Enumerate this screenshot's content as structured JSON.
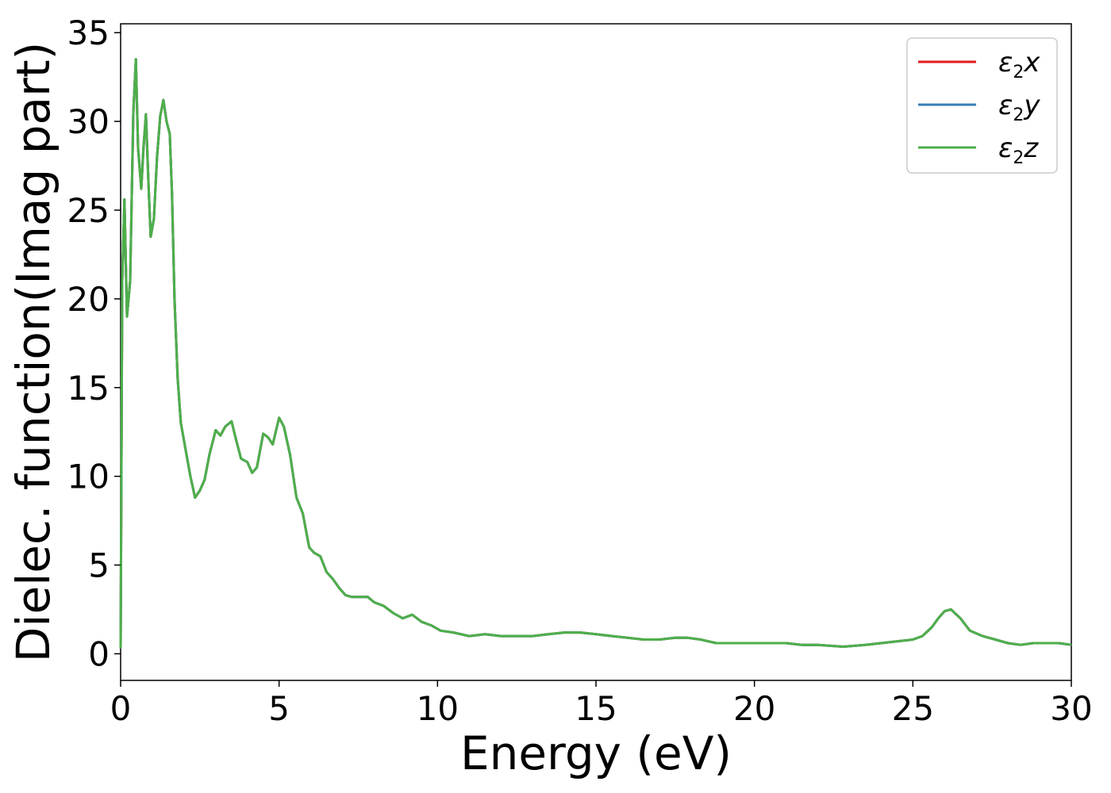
{
  "chart_data": {
    "type": "line",
    "title": "",
    "xlabel": "Energy (eV)",
    "ylabel": "Dielec. function(Imag part)",
    "xlim": [
      0,
      30
    ],
    "ylim": [
      -1.5,
      35.5
    ],
    "xticks": [
      "0",
      "5",
      "10",
      "15",
      "20",
      "25",
      "30"
    ],
    "yticks": [
      "0",
      "5",
      "10",
      "15",
      "20",
      "25",
      "30",
      "35"
    ],
    "grid": false,
    "legend_position": "top-right",
    "x": [
      0,
      0.05,
      0.12,
      0.2,
      0.3,
      0.4,
      0.48,
      0.55,
      0.65,
      0.72,
      0.8,
      0.88,
      0.95,
      1.05,
      1.15,
      1.25,
      1.35,
      1.45,
      1.55,
      1.62,
      1.7,
      1.8,
      1.9,
      2.0,
      2.1,
      2.2,
      2.35,
      2.5,
      2.65,
      2.8,
      3.0,
      3.15,
      3.3,
      3.5,
      3.65,
      3.8,
      4.0,
      4.15,
      4.3,
      4.5,
      4.65,
      4.8,
      5.0,
      5.15,
      5.35,
      5.55,
      5.75,
      5.95,
      6.1,
      6.3,
      6.5,
      6.7,
      6.9,
      7.1,
      7.3,
      7.55,
      7.8,
      8.0,
      8.3,
      8.6,
      8.9,
      9.2,
      9.5,
      9.8,
      10.1,
      10.5,
      11.0,
      11.5,
      12.0,
      12.5,
      13.0,
      13.5,
      14.0,
      14.5,
      15.0,
      15.5,
      16.0,
      16.5,
      17.0,
      17.5,
      17.9,
      18.3,
      18.8,
      19.5,
      20.0,
      20.5,
      21.0,
      21.5,
      22.0,
      22.8,
      23.5,
      24.0,
      24.5,
      25.0,
      25.3,
      25.6,
      25.8,
      26.0,
      26.2,
      26.5,
      26.8,
      27.2,
      27.6,
      28.0,
      28.4,
      28.8,
      29.2,
      29.6,
      30.0
    ],
    "series": [
      {
        "name": "ε2x",
        "color": "#e41a1c",
        "values": [
          0.3,
          21.0,
          25.6,
          19.0,
          21.0,
          30.5,
          33.5,
          28.5,
          26.2,
          28.5,
          30.4,
          26.5,
          23.5,
          24.5,
          28.0,
          30.3,
          31.2,
          30.0,
          29.3,
          26.0,
          20.0,
          15.5,
          13.0,
          12.0,
          11.0,
          10.0,
          8.8,
          9.2,
          9.8,
          11.2,
          12.6,
          12.3,
          12.8,
          13.1,
          12.0,
          11.0,
          10.8,
          10.2,
          10.5,
          12.4,
          12.2,
          11.8,
          13.3,
          12.8,
          11.2,
          8.8,
          7.9,
          6.0,
          5.7,
          5.5,
          4.6,
          4.2,
          3.7,
          3.3,
          3.2,
          3.2,
          3.2,
          2.9,
          2.7,
          2.3,
          2.0,
          2.2,
          1.8,
          1.6,
          1.3,
          1.2,
          1.0,
          1.1,
          1.0,
          1.0,
          1.0,
          1.1,
          1.2,
          1.2,
          1.1,
          1.0,
          0.9,
          0.8,
          0.8,
          0.9,
          0.9,
          0.8,
          0.6,
          0.6,
          0.6,
          0.6,
          0.6,
          0.5,
          0.5,
          0.4,
          0.5,
          0.6,
          0.7,
          0.8,
          1.0,
          1.5,
          2.0,
          2.4,
          2.5,
          2.0,
          1.3,
          1.0,
          0.8,
          0.6,
          0.5,
          0.6,
          0.6,
          0.6,
          0.5
        ]
      },
      {
        "name": "ε2y",
        "color": "#377eb8",
        "values": [
          0.3,
          21.0,
          25.6,
          19.0,
          21.0,
          30.5,
          33.5,
          28.5,
          26.2,
          28.5,
          30.4,
          26.5,
          23.5,
          24.5,
          28.0,
          30.3,
          31.2,
          30.0,
          29.3,
          26.0,
          20.0,
          15.5,
          13.0,
          12.0,
          11.0,
          10.0,
          8.8,
          9.2,
          9.8,
          11.2,
          12.6,
          12.3,
          12.8,
          13.1,
          12.0,
          11.0,
          10.8,
          10.2,
          10.5,
          12.4,
          12.2,
          11.8,
          13.3,
          12.8,
          11.2,
          8.8,
          7.9,
          6.0,
          5.7,
          5.5,
          4.6,
          4.2,
          3.7,
          3.3,
          3.2,
          3.2,
          3.2,
          2.9,
          2.7,
          2.3,
          2.0,
          2.2,
          1.8,
          1.6,
          1.3,
          1.2,
          1.0,
          1.1,
          1.0,
          1.0,
          1.0,
          1.1,
          1.2,
          1.2,
          1.1,
          1.0,
          0.9,
          0.8,
          0.8,
          0.9,
          0.9,
          0.8,
          0.6,
          0.6,
          0.6,
          0.6,
          0.6,
          0.5,
          0.5,
          0.4,
          0.5,
          0.6,
          0.7,
          0.8,
          1.0,
          1.5,
          2.0,
          2.4,
          2.5,
          2.0,
          1.3,
          1.0,
          0.8,
          0.6,
          0.5,
          0.6,
          0.6,
          0.6,
          0.5
        ]
      },
      {
        "name": "ε2z",
        "color": "#4daf4a",
        "values": [
          0.3,
          21.0,
          25.6,
          19.0,
          21.0,
          30.5,
          33.5,
          28.5,
          26.2,
          28.5,
          30.4,
          26.5,
          23.5,
          24.5,
          28.0,
          30.3,
          31.2,
          30.0,
          29.3,
          26.0,
          20.0,
          15.5,
          13.0,
          12.0,
          11.0,
          10.0,
          8.8,
          9.2,
          9.8,
          11.2,
          12.6,
          12.3,
          12.8,
          13.1,
          12.0,
          11.0,
          10.8,
          10.2,
          10.5,
          12.4,
          12.2,
          11.8,
          13.3,
          12.8,
          11.2,
          8.8,
          7.9,
          6.0,
          5.7,
          5.5,
          4.6,
          4.2,
          3.7,
          3.3,
          3.2,
          3.2,
          3.2,
          2.9,
          2.7,
          2.3,
          2.0,
          2.2,
          1.8,
          1.6,
          1.3,
          1.2,
          1.0,
          1.1,
          1.0,
          1.0,
          1.0,
          1.1,
          1.2,
          1.2,
          1.1,
          1.0,
          0.9,
          0.8,
          0.8,
          0.9,
          0.9,
          0.8,
          0.6,
          0.6,
          0.6,
          0.6,
          0.6,
          0.5,
          0.5,
          0.4,
          0.5,
          0.6,
          0.7,
          0.8,
          1.0,
          1.5,
          2.0,
          2.4,
          2.5,
          2.0,
          1.3,
          1.0,
          0.8,
          0.6,
          0.5,
          0.6,
          0.6,
          0.6,
          0.5
        ]
      }
    ],
    "legend": [
      {
        "base": "ε",
        "sub": "2",
        "axis": "x"
      },
      {
        "base": "ε",
        "sub": "2",
        "axis": "y"
      },
      {
        "base": "ε",
        "sub": "2",
        "axis": "z"
      }
    ]
  }
}
